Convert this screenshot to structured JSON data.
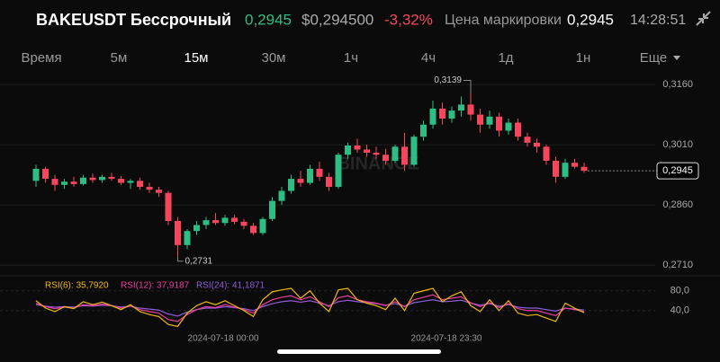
{
  "header": {
    "symbol": "BAKEUSDT Бессрочный",
    "last_price": "0,2945",
    "usd_price": "$0,294500",
    "change": "-3,32%",
    "mark_label": "Цена маркировки",
    "mark_price": "0,2945",
    "time": "14:28:51"
  },
  "timeframes": {
    "items": [
      "Время",
      "5м",
      "15м",
      "30м",
      "1ч",
      "4ч",
      "1д",
      "1н",
      "Еще"
    ],
    "selected": 2
  },
  "chart_data": [
    {
      "type": "candlestick",
      "up_color": "#2ebd85",
      "down_color": "#f6465d",
      "watermark": "BINANCE",
      "ylim": [
        0.2688,
        0.3187
      ],
      "yticks": [
        {
          "value": 0.316,
          "label": "0,3160"
        },
        {
          "value": 0.301,
          "label": "0,3010"
        },
        {
          "value": 0.286,
          "label": "0,2860"
        },
        {
          "value": 0.271,
          "label": "0,2710"
        }
      ],
      "high_label": {
        "value": 0.3139,
        "label": "0,3139"
      },
      "low_label": {
        "value": 0.2731,
        "label": "0,2731"
      },
      "last_price_label": {
        "value": 0.2945,
        "label": "0,2945"
      },
      "candles": [
        [
          0.292,
          0.296,
          0.2905,
          0.295
        ],
        [
          0.295,
          0.2955,
          0.2915,
          0.2925
        ],
        [
          0.2925,
          0.2935,
          0.2895,
          0.291
        ],
        [
          0.291,
          0.2925,
          0.29,
          0.2918
        ],
        [
          0.2918,
          0.293,
          0.2905,
          0.2912
        ],
        [
          0.2912,
          0.2935,
          0.2908,
          0.2928
        ],
        [
          0.2928,
          0.2938,
          0.2915,
          0.2922
        ],
        [
          0.2922,
          0.2935,
          0.2915,
          0.293
        ],
        [
          0.293,
          0.294,
          0.292,
          0.2925
        ],
        [
          0.2925,
          0.2932,
          0.291,
          0.2915
        ],
        [
          0.2915,
          0.2925,
          0.29,
          0.292
        ],
        [
          0.292,
          0.2928,
          0.2898,
          0.2905
        ],
        [
          0.2905,
          0.2915,
          0.289,
          0.2898
        ],
        [
          0.2898,
          0.2905,
          0.288,
          0.289
        ],
        [
          0.289,
          0.2895,
          0.281,
          0.282
        ],
        [
          0.282,
          0.283,
          0.2731,
          0.276
        ],
        [
          0.276,
          0.28,
          0.275,
          0.2795
        ],
        [
          0.2795,
          0.282,
          0.2785,
          0.281
        ],
        [
          0.281,
          0.283,
          0.28,
          0.2822
        ],
        [
          0.2822,
          0.284,
          0.281,
          0.2815
        ],
        [
          0.2815,
          0.2835,
          0.2808,
          0.2828
        ],
        [
          0.2828,
          0.2835,
          0.2812,
          0.2818
        ],
        [
          0.2818,
          0.2825,
          0.28,
          0.2808
        ],
        [
          0.2808,
          0.2815,
          0.2785,
          0.279
        ],
        [
          0.279,
          0.283,
          0.2785,
          0.2825
        ],
        [
          0.2825,
          0.288,
          0.282,
          0.287
        ],
        [
          0.287,
          0.2905,
          0.286,
          0.2895
        ],
        [
          0.2895,
          0.2935,
          0.2888,
          0.2925
        ],
        [
          0.2925,
          0.2945,
          0.2905,
          0.2915
        ],
        [
          0.2915,
          0.296,
          0.291,
          0.295
        ],
        [
          0.295,
          0.2968,
          0.292,
          0.293
        ],
        [
          0.293,
          0.294,
          0.2895,
          0.2905
        ],
        [
          0.2905,
          0.299,
          0.29,
          0.2985
        ],
        [
          0.2985,
          0.3015,
          0.2975,
          0.3008
        ],
        [
          0.3008,
          0.3025,
          0.299,
          0.2998
        ],
        [
          0.2998,
          0.301,
          0.298,
          0.299
        ],
        [
          0.299,
          0.3005,
          0.2975,
          0.2985
        ],
        [
          0.2985,
          0.3,
          0.296,
          0.297
        ],
        [
          0.297,
          0.301,
          0.2965,
          0.3005
        ],
        [
          0.3005,
          0.304,
          0.2945,
          0.296
        ],
        [
          0.296,
          0.3035,
          0.2955,
          0.303
        ],
        [
          0.303,
          0.307,
          0.302,
          0.306
        ],
        [
          0.306,
          0.312,
          0.305,
          0.31
        ],
        [
          0.31,
          0.3115,
          0.306,
          0.3075
        ],
        [
          0.3075,
          0.3105,
          0.3065,
          0.3095
        ],
        [
          0.3095,
          0.313,
          0.308,
          0.311
        ],
        [
          0.311,
          0.3139,
          0.307,
          0.3085
        ],
        [
          0.3085,
          0.31,
          0.304,
          0.306
        ],
        [
          0.306,
          0.3095,
          0.305,
          0.308
        ],
        [
          0.308,
          0.309,
          0.303,
          0.3045
        ],
        [
          0.3045,
          0.3075,
          0.3035,
          0.3065
        ],
        [
          0.3065,
          0.3075,
          0.302,
          0.303
        ],
        [
          0.303,
          0.304,
          0.3005,
          0.3015
        ],
        [
          0.3015,
          0.3025,
          0.299,
          0.3005
        ],
        [
          0.3005,
          0.301,
          0.296,
          0.297
        ],
        [
          0.297,
          0.298,
          0.2915,
          0.293
        ],
        [
          0.293,
          0.2975,
          0.2925,
          0.2965
        ],
        [
          0.2965,
          0.2975,
          0.295,
          0.2955
        ],
        [
          0.2955,
          0.2965,
          0.294,
          0.2945
        ]
      ]
    },
    {
      "type": "line",
      "ylim": [
        -4,
        105
      ],
      "yticks": [
        {
          "value": 80,
          "label": "80,0"
        },
        {
          "value": 40,
          "label": "40,0"
        }
      ],
      "x_labels": [
        "2024-07-18 00:00",
        "2024-07-18 23:30"
      ],
      "series": [
        {
          "name": "RSI(6): 35,7920",
          "color": "#f0b90b",
          "values": [
            60,
            45,
            38,
            48,
            44,
            58,
            52,
            57,
            50,
            42,
            52,
            38,
            32,
            28,
            12,
            8,
            35,
            50,
            58,
            52,
            60,
            50,
            40,
            28,
            62,
            78,
            82,
            85,
            65,
            80,
            55,
            38,
            82,
            85,
            62,
            55,
            50,
            42,
            65,
            40,
            75,
            80,
            85,
            58,
            70,
            78,
            50,
            38,
            62,
            40,
            60,
            35,
            30,
            32,
            25,
            18,
            55,
            45,
            35.792
          ]
        },
        {
          "name": "RSI(12): 37,9187",
          "color": "#e8409a",
          "values": [
            55,
            48,
            44,
            47,
            45,
            52,
            50,
            53,
            50,
            45,
            49,
            42,
            38,
            35,
            22,
            18,
            32,
            42,
            48,
            46,
            52,
            47,
            42,
            35,
            52,
            62,
            67,
            70,
            62,
            68,
            58,
            48,
            66,
            70,
            62,
            58,
            55,
            50,
            58,
            48,
            62,
            67,
            72,
            62,
            65,
            68,
            56,
            48,
            56,
            46,
            54,
            44,
            40,
            40,
            35,
            30,
            45,
            42,
            37.9187
          ]
        },
        {
          "name": "RSI(24): 41,1871",
          "color": "#8e5cd9",
          "values": [
            52,
            49,
            47,
            48,
            47,
            50,
            49,
            51,
            50,
            47,
            49,
            45,
            43,
            41,
            33,
            29,
            37,
            42,
            45,
            45,
            48,
            46,
            44,
            40,
            48,
            54,
            58,
            60,
            57,
            60,
            55,
            50,
            58,
            61,
            58,
            56,
            54,
            51,
            54,
            49,
            56,
            59,
            62,
            58,
            59,
            61,
            55,
            51,
            54,
            49,
            52,
            47,
            45,
            45,
            42,
            39,
            45,
            43,
            41.1871
          ]
        }
      ]
    }
  ]
}
